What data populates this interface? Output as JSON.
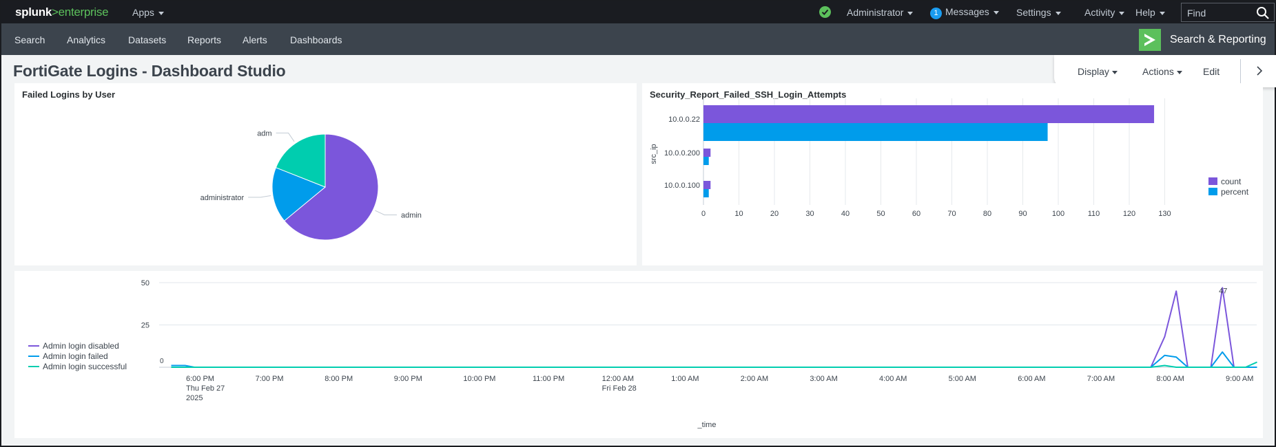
{
  "topbar": {
    "logo_splunk": "splunk",
    "logo_sep": ">",
    "logo_product": "enterprise",
    "apps_label": "Apps",
    "user_label": "Administrator",
    "messages_count": "1",
    "messages_label": "Messages",
    "settings_label": "Settings",
    "activity_label": "Activity",
    "help_label": "Help",
    "find_placeholder": "Find"
  },
  "appbar": {
    "nav": [
      "Search",
      "Analytics",
      "Datasets",
      "Reports",
      "Alerts",
      "Dashboards"
    ],
    "app_title": "Search & Reporting"
  },
  "dashboard": {
    "title": "FortiGate Logins - Dashboard Studio"
  },
  "toolbar": {
    "display_label": "Display",
    "actions_label": "Actions",
    "edit_label": "Edit"
  },
  "colors": {
    "purple": "#7b56db",
    "blue": "#009ceb",
    "teal": "#00cdaf",
    "splunk_green": "#5cc05c"
  },
  "icons": [
    "check-icon",
    "caret-down-icon",
    "search-icon",
    "app-logo-icon",
    "chevron-right-icon"
  ],
  "chart_data": [
    {
      "type": "pie",
      "title": "Failed Logins by User",
      "slices": [
        {
          "label": "admin",
          "value": 64
        },
        {
          "label": "administrator",
          "value": 17
        },
        {
          "label": "adm",
          "value": 19
        }
      ]
    },
    {
      "type": "bar",
      "orientation": "horizontal",
      "title": "Security_Report_Failed_SSH_Login_Attempts",
      "ylabel": "src_ip",
      "categories": [
        "10.0.0.22",
        "10.0.0.200",
        "10.0.0.100"
      ],
      "series": [
        {
          "name": "count",
          "values": [
            127,
            2,
            2
          ]
        },
        {
          "name": "percent",
          "values": [
            97,
            1.5,
            1.5
          ]
        }
      ],
      "xticks": [
        0,
        10,
        20,
        30,
        40,
        50,
        60,
        70,
        80,
        90,
        100,
        110,
        120,
        130
      ],
      "xlim": [
        0,
        140
      ],
      "legend": "right",
      "grid": true
    },
    {
      "type": "line",
      "xlabel": "_time",
      "ylim": [
        0,
        50
      ],
      "yticks": [
        50,
        25
      ],
      "start_label": "0",
      "peak_label": "47",
      "xticks": [
        {
          "label": "6:00 PM",
          "sub": "Thu Feb 27",
          "sub2": "2025",
          "t": "2025-02-27 18:00"
        },
        {
          "label": "7:00 PM",
          "sub": "",
          "sub2": "",
          "t": "2025-02-27 19:00"
        },
        {
          "label": "8:00 PM",
          "sub": "",
          "sub2": "",
          "t": "2025-02-27 20:00"
        },
        {
          "label": "9:00 PM",
          "sub": "",
          "sub2": "",
          "t": "2025-02-27 21:00"
        },
        {
          "label": "10:00 PM",
          "sub": "",
          "sub2": "",
          "t": "2025-02-27 22:00"
        },
        {
          "label": "11:00 PM",
          "sub": "",
          "sub2": "",
          "t": "2025-02-27 23:00"
        },
        {
          "label": "12:00 AM",
          "sub": "Fri Feb 28",
          "sub2": "",
          "t": "2025-02-28 00:00"
        },
        {
          "label": "1:00 AM",
          "sub": "",
          "sub2": "",
          "t": "2025-02-28 01:00"
        },
        {
          "label": "2:00 AM",
          "sub": "",
          "sub2": "",
          "t": "2025-02-28 02:00"
        },
        {
          "label": "3:00 AM",
          "sub": "",
          "sub2": "",
          "t": "2025-02-28 03:00"
        },
        {
          "label": "4:00 AM",
          "sub": "",
          "sub2": "",
          "t": "2025-02-28 04:00"
        },
        {
          "label": "5:00 AM",
          "sub": "",
          "sub2": "",
          "t": "2025-02-28 05:00"
        },
        {
          "label": "6:00 AM",
          "sub": "",
          "sub2": "",
          "t": "2025-02-28 06:00"
        },
        {
          "label": "7:00 AM",
          "sub": "",
          "sub2": "",
          "t": "2025-02-28 07:00"
        },
        {
          "label": "8:00 AM",
          "sub": "",
          "sub2": "",
          "t": "2025-02-28 08:00"
        },
        {
          "label": "9:00 AM",
          "sub": "",
          "sub2": "",
          "t": "2025-02-28 09:00"
        }
      ],
      "series": [
        {
          "name": "Admin login disabled",
          "points": [
            [
              "2025-02-27 17:40",
              0
            ],
            [
              "2025-02-28 07:48",
              0
            ],
            [
              "2025-02-28 08:00",
              18
            ],
            [
              "2025-02-28 08:10",
              45
            ],
            [
              "2025-02-28 08:20",
              0
            ],
            [
              "2025-02-28 08:40",
              0
            ],
            [
              "2025-02-28 08:50",
              47
            ],
            [
              "2025-02-28 09:00",
              0
            ],
            [
              "2025-02-28 09:20",
              0
            ]
          ]
        },
        {
          "name": "Admin login failed",
          "points": [
            [
              "2025-02-27 17:40",
              1
            ],
            [
              "2025-02-27 17:52",
              1
            ],
            [
              "2025-02-27 18:00",
              0
            ],
            [
              "2025-02-28 07:48",
              0
            ],
            [
              "2025-02-28 08:00",
              7
            ],
            [
              "2025-02-28 08:10",
              6
            ],
            [
              "2025-02-28 08:20",
              0
            ],
            [
              "2025-02-28 08:40",
              0
            ],
            [
              "2025-02-28 08:50",
              9
            ],
            [
              "2025-02-28 09:00",
              0
            ],
            [
              "2025-02-28 09:20",
              0
            ]
          ]
        },
        {
          "name": "Admin login successful",
          "points": [
            [
              "2025-02-27 17:40",
              0
            ],
            [
              "2025-02-28 07:48",
              0
            ],
            [
              "2025-02-28 08:00",
              1
            ],
            [
              "2025-02-28 08:10",
              0
            ],
            [
              "2025-02-28 09:10",
              0
            ],
            [
              "2025-02-28 09:20",
              3
            ]
          ]
        }
      ],
      "legend": "left"
    }
  ]
}
